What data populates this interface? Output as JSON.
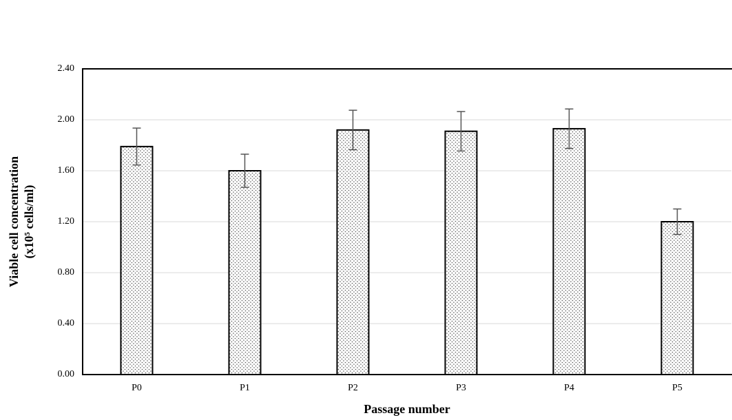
{
  "chart_data": {
    "type": "bar",
    "y_label_lines": [
      "Viable cell concentration",
      "(x10⁵ cells/ml)"
    ],
    "x_label": "Passage number",
    "categories": [
      "P0",
      "P1",
      "P2",
      "P3",
      "P4",
      "P5"
    ],
    "values": [
      1.79,
      1.6,
      1.92,
      1.91,
      1.93,
      1.2
    ],
    "errors": [
      0.145,
      0.13,
      0.155,
      0.155,
      0.155,
      0.1
    ],
    "color": "#ffffff",
    "ylim": [
      0,
      2.4
    ],
    "yticks": [
      {
        "value": 0,
        "label": "0.00"
      },
      {
        "value": 0.4,
        "label": "0.40"
      },
      {
        "value": 0.8,
        "label": "0.80"
      },
      {
        "value": 1.2,
        "label": "1.20"
      },
      {
        "value": 1.6,
        "label": "1.60"
      },
      {
        "value": 2,
        "label": "2.00"
      },
      {
        "value": 2.4,
        "label": "2.40"
      }
    ],
    "grid": true
  }
}
